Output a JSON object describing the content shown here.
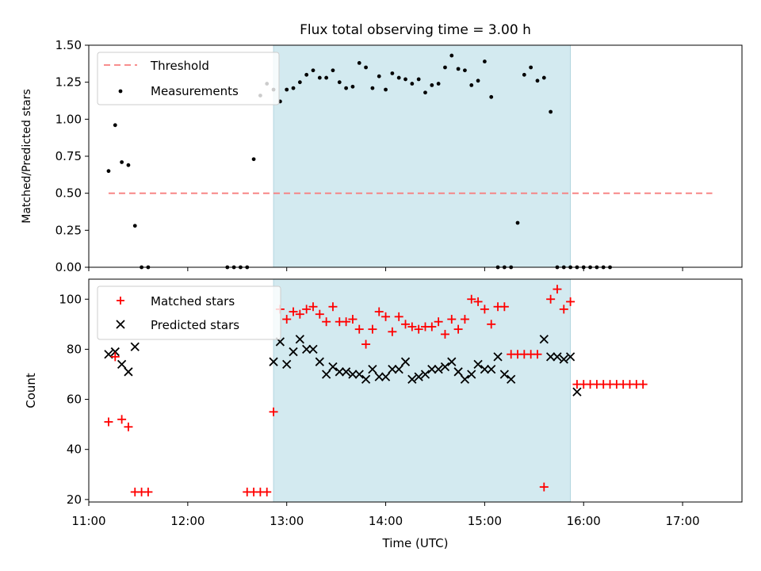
{
  "chart_data": [
    {
      "type": "scatter",
      "title": "Flux total observing time = 3.00 h",
      "xlabel": "",
      "ylabel": "Matched/Predicted stars",
      "xlim": [
        "11:00",
        "17:36"
      ],
      "ylim": [
        0,
        1.5
      ],
      "yticks": [
        "0.00",
        "0.25",
        "0.50",
        "0.75",
        "1.00",
        "1.25",
        "1.50"
      ],
      "legend_position": "top-left",
      "highlight_span": {
        "start": "12:52",
        "end": "15:52",
        "color": "#d3eaf0"
      },
      "threshold": {
        "name": "Threshold",
        "value": 0.5,
        "x_start": "11:12",
        "x_end": "17:18",
        "color": "#f77f7f",
        "style": "dashed"
      },
      "series": [
        {
          "name": "Measurements",
          "color": "#000000",
          "x": [
            "11:12",
            "11:16",
            "11:20",
            "11:24",
            "11:28",
            "11:32",
            "11:36",
            "11:40",
            "11:44",
            "11:48",
            "11:52",
            "11:56",
            "12:00",
            "12:04",
            "12:08",
            "12:12",
            "12:16",
            "12:20",
            "12:24",
            "12:28",
            "12:32",
            "12:36",
            "12:40",
            "12:44",
            "12:48",
            "12:52",
            "12:56",
            "13:00",
            "13:04",
            "13:08",
            "13:12",
            "13:16",
            "13:20",
            "13:24",
            "13:28",
            "13:32",
            "13:36",
            "13:40",
            "13:44",
            "13:48",
            "13:52",
            "13:56",
            "14:00",
            "14:04",
            "14:08",
            "14:12",
            "14:16",
            "14:20",
            "14:24",
            "14:28",
            "14:32",
            "14:36",
            "14:40",
            "14:44",
            "14:48",
            "14:52",
            "14:56",
            "15:00",
            "15:04",
            "15:08",
            "15:12",
            "15:16",
            "15:20",
            "15:24",
            "15:28",
            "15:32",
            "15:36",
            "15:40",
            "15:44",
            "15:48",
            "15:52",
            "15:56",
            "16:00",
            "16:04",
            "16:08",
            "16:12",
            "16:16",
            "16:20",
            "16:24",
            "16:28",
            "16:32",
            "16:36",
            "16:40",
            "16:44",
            "16:48",
            "16:52",
            "16:56",
            "17:00",
            "17:04",
            "17:08",
            "17:12",
            "17:16",
            "17:20"
          ],
          "y": [
            0.65,
            0.96,
            0.71,
            0.69,
            0.28,
            0.0,
            0.0,
            null,
            null,
            null,
            null,
            null,
            null,
            null,
            null,
            null,
            null,
            null,
            0.0,
            0.0,
            0.0,
            0.0,
            0.73,
            1.16,
            1.24,
            1.2,
            1.12,
            1.2,
            1.21,
            1.25,
            1.3,
            1.33,
            1.28,
            1.28,
            1.33,
            1.25,
            1.21,
            1.22,
            1.38,
            1.35,
            1.21,
            1.29,
            1.2,
            1.31,
            1.28,
            1.27,
            1.24,
            1.27,
            1.18,
            1.23,
            1.24,
            1.35,
            1.43,
            1.34,
            1.33,
            1.23,
            1.26,
            1.39,
            1.15,
            0.0,
            0.0,
            0.0,
            0.3,
            1.3,
            1.35,
            1.26,
            1.28,
            1.05,
            0.0,
            0.0,
            0.0,
            0.0,
            0.0,
            0.0,
            0.0,
            0.0,
            0.0,
            null,
            null,
            null,
            null,
            null,
            null,
            null,
            null,
            null,
            null,
            null,
            null,
            null,
            null,
            null,
            null
          ]
        }
      ]
    },
    {
      "type": "scatter",
      "title": "",
      "xlabel": "Time (UTC)",
      "ylabel": "Count",
      "xlim": [
        "11:00",
        "17:36"
      ],
      "xticks": [
        "11:00",
        "12:00",
        "13:00",
        "14:00",
        "15:00",
        "16:00",
        "17:00"
      ],
      "ylim": [
        19,
        108
      ],
      "yticks": [
        "20",
        "40",
        "60",
        "80",
        "100"
      ],
      "legend_position": "top-left",
      "highlight_span": {
        "start": "12:52",
        "end": "15:52",
        "color": "#d3eaf0"
      },
      "series": [
        {
          "name": "Matched stars",
          "marker": "plus",
          "color": "#ff0000",
          "points": [
            [
              "11:12",
              51
            ],
            [
              "11:16",
              77
            ],
            [
              "11:20",
              52
            ],
            [
              "11:24",
              49
            ],
            [
              "11:28",
              23
            ],
            [
              "11:32",
              23
            ],
            [
              "11:36",
              23
            ],
            [
              "12:36",
              23
            ],
            [
              "12:40",
              23
            ],
            [
              "12:44",
              23
            ],
            [
              "12:48",
              23
            ],
            [
              "12:52",
              55
            ],
            [
              "12:56",
              96
            ],
            [
              "13:00",
              92
            ],
            [
              "13:04",
              95
            ],
            [
              "13:08",
              94
            ],
            [
              "13:12",
              96
            ],
            [
              "13:16",
              97
            ],
            [
              "13:20",
              94
            ],
            [
              "13:24",
              91
            ],
            [
              "13:28",
              97
            ],
            [
              "13:32",
              91
            ],
            [
              "13:36",
              91
            ],
            [
              "13:40",
              92
            ],
            [
              "13:44",
              88
            ],
            [
              "13:48",
              82
            ],
            [
              "13:52",
              88
            ],
            [
              "13:56",
              95
            ],
            [
              "14:00",
              93
            ],
            [
              "14:04",
              87
            ],
            [
              "14:08",
              93
            ],
            [
              "14:12",
              90
            ],
            [
              "14:16",
              89
            ],
            [
              "14:20",
              88
            ],
            [
              "14:24",
              89
            ],
            [
              "14:28",
              89
            ],
            [
              "14:32",
              91
            ],
            [
              "14:36",
              86
            ],
            [
              "14:40",
              92
            ],
            [
              "14:44",
              88
            ],
            [
              "14:48",
              92
            ],
            [
              "14:52",
              100
            ],
            [
              "14:56",
              99
            ],
            [
              "15:00",
              96
            ],
            [
              "15:04",
              90
            ],
            [
              "15:08",
              97
            ],
            [
              "15:12",
              97
            ],
            [
              "15:16",
              78
            ],
            [
              "15:20",
              78
            ],
            [
              "15:24",
              78
            ],
            [
              "15:28",
              78
            ],
            [
              "15:32",
              78
            ],
            [
              "15:36",
              25
            ],
            [
              "15:40",
              100
            ],
            [
              "15:44",
              104
            ],
            [
              "15:48",
              96
            ],
            [
              "15:52",
              99
            ],
            [
              "15:56",
              66
            ],
            [
              "16:00",
              66
            ],
            [
              "16:04",
              66
            ],
            [
              "16:08",
              66
            ],
            [
              "16:12",
              66
            ],
            [
              "16:16",
              66
            ],
            [
              "16:20",
              66
            ],
            [
              "16:24",
              66
            ],
            [
              "16:28",
              66
            ],
            [
              "16:32",
              66
            ],
            [
              "16:36",
              66
            ]
          ]
        },
        {
          "name": "Predicted stars",
          "marker": "x",
          "color": "#000000",
          "points": [
            [
              "11:12",
              78
            ],
            [
              "11:16",
              79
            ],
            [
              "11:20",
              74
            ],
            [
              "11:24",
              71
            ],
            [
              "11:28",
              81
            ],
            [
              "12:52",
              75
            ],
            [
              "12:56",
              83
            ],
            [
              "13:00",
              74
            ],
            [
              "13:04",
              79
            ],
            [
              "13:08",
              84
            ],
            [
              "13:12",
              80
            ],
            [
              "13:16",
              80
            ],
            [
              "13:20",
              75
            ],
            [
              "13:24",
              70
            ],
            [
              "13:28",
              73
            ],
            [
              "13:32",
              71
            ],
            [
              "13:36",
              71
            ],
            [
              "13:40",
              70
            ],
            [
              "13:44",
              70
            ],
            [
              "13:48",
              68
            ],
            [
              "13:52",
              72
            ],
            [
              "13:56",
              69
            ],
            [
              "14:00",
              69
            ],
            [
              "14:04",
              72
            ],
            [
              "14:08",
              72
            ],
            [
              "14:12",
              75
            ],
            [
              "14:16",
              68
            ],
            [
              "14:20",
              69
            ],
            [
              "14:24",
              70
            ],
            [
              "14:28",
              72
            ],
            [
              "14:32",
              72
            ],
            [
              "14:36",
              73
            ],
            [
              "14:40",
              75
            ],
            [
              "14:44",
              71
            ],
            [
              "14:48",
              68
            ],
            [
              "14:52",
              70
            ],
            [
              "14:56",
              74
            ],
            [
              "15:00",
              72
            ],
            [
              "15:04",
              72
            ],
            [
              "15:08",
              77
            ],
            [
              "15:12",
              70
            ],
            [
              "15:16",
              68
            ],
            [
              "15:36",
              84
            ],
            [
              "15:40",
              77
            ],
            [
              "15:44",
              77
            ],
            [
              "15:48",
              76
            ],
            [
              "15:52",
              77
            ],
            [
              "15:56",
              63
            ]
          ]
        }
      ]
    }
  ]
}
